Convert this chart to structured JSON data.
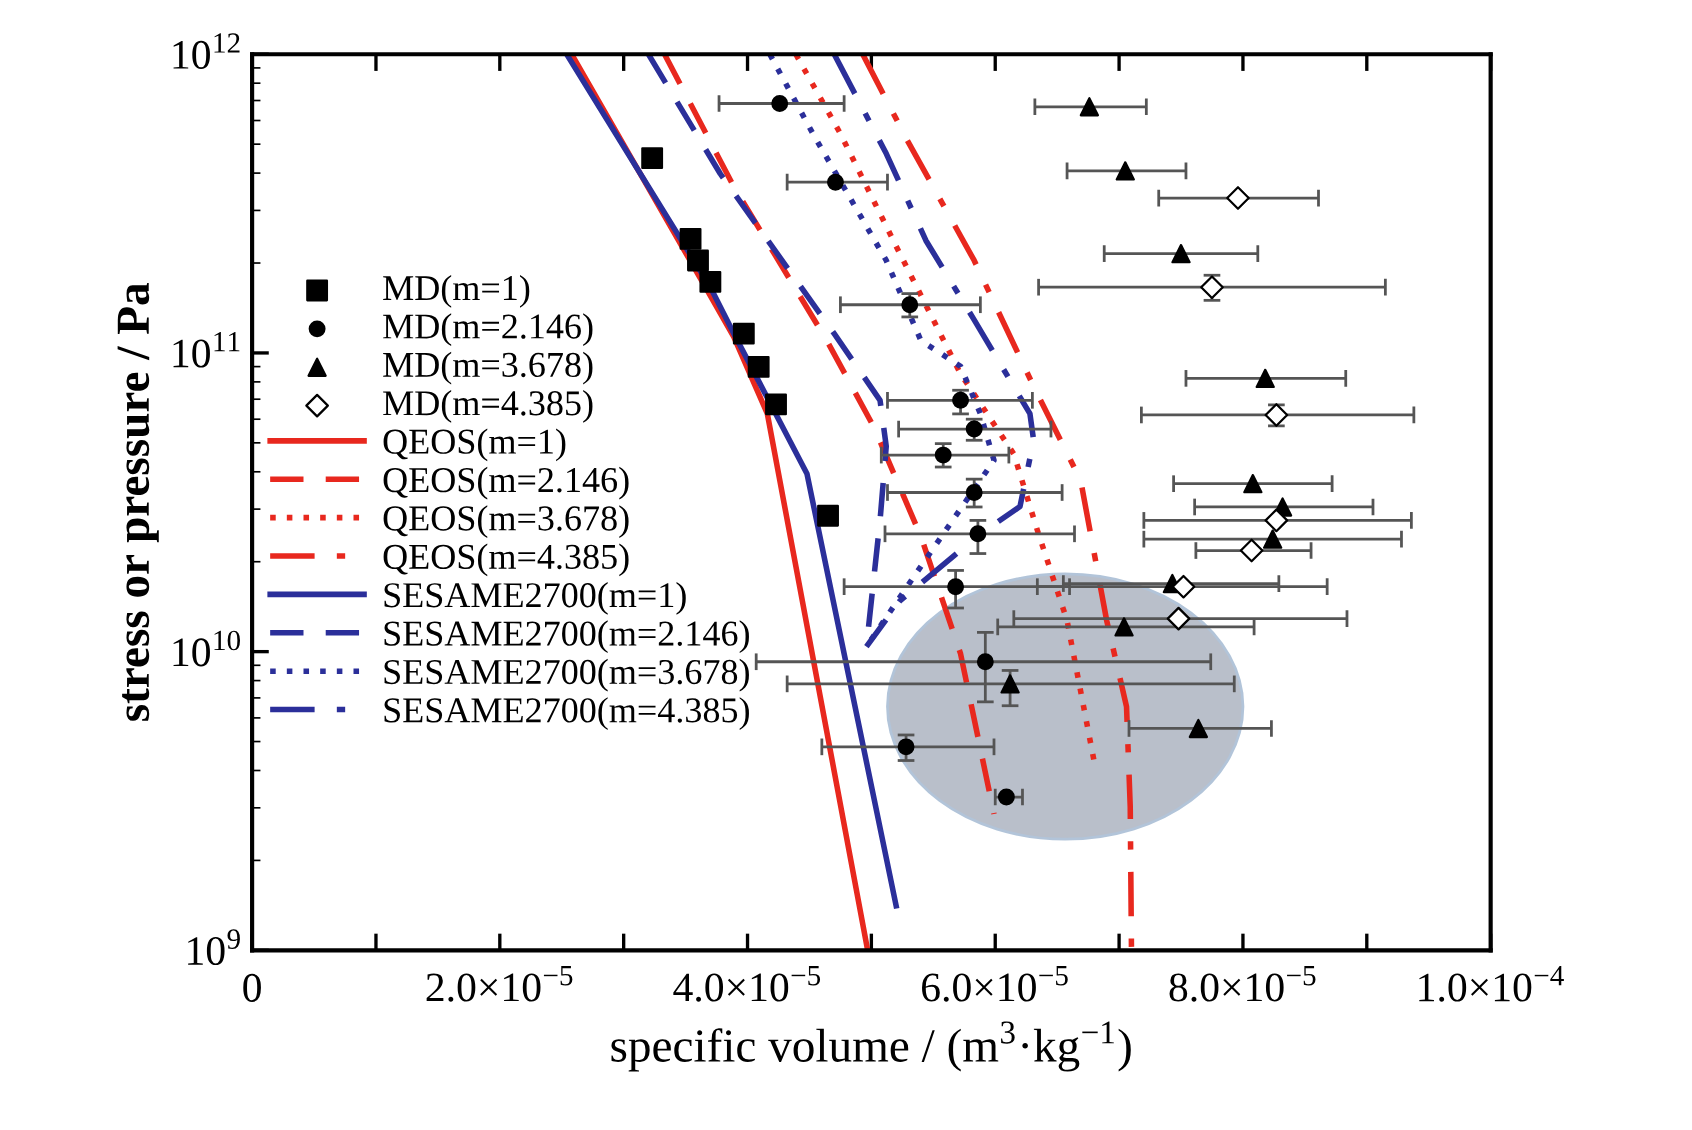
{
  "chart_data": {
    "type": "scatter",
    "xlabel": "specific volume / (m$^{3}$·kg$^{−1}$)",
    "ylabel": "stress or pressure / Pa",
    "log": "y",
    "xlim": [
      0,
      0.0001
    ],
    "xticks": [
      0,
      {
        "value": 1e-05,
        "label": null
      },
      {
        "value": 2e-05,
        "label": "2.0×10$^{−5}$"
      },
      {
        "value": 3e-05,
        "label": null
      },
      {
        "value": 4e-05,
        "label": "4.0×10$^{−5}$"
      },
      {
        "value": 5e-05,
        "label": null
      },
      {
        "value": 6e-05,
        "label": "6.0×10$^{−5}$"
      },
      {
        "value": 7e-05,
        "label": null
      },
      {
        "value": 8e-05,
        "label": "8.0×10$^{−5}$"
      },
      {
        "value": 9e-05,
        "label": null
      },
      {
        "value": 0.0001,
        "label": "1.0×10$^{−4}$"
      }
    ],
    "ylim": [
      1000000000.0,
      1000000000000.0
    ],
    "yticks": [
      {
        "value": 1000000000.0,
        "label": "10$^{9}$"
      },
      {
        "value": 10000000000.0,
        "label": "10$^{10}$"
      },
      {
        "value": 100000000000.0,
        "label": "10$^{11}$"
      },
      {
        "value": 1000000000000.0,
        "label": "10$^{12}$"
      }
    ],
    "grid": false,
    "legend": "left",
    "series": [
      {
        "name": "MD(m=1)",
        "marker": "square",
        "color": "#000000",
        "x": [
          3.23e-05,
          3.54e-05,
          3.6e-05,
          3.7e-05,
          3.97e-05,
          4.09e-05,
          4.23e-05,
          4.65e-05
        ],
        "values": [
          449000000000.0,
          241000000000.0,
          204000000000.0,
          173000000000.0,
          116000000000.0,
          89800000000.0,
          67300000000.0,
          28500000000.0
        ]
      },
      {
        "name": "MD(m=2.146)",
        "marker": "circle",
        "color": "#000000",
        "x": [
          4.26e-05,
          4.71e-05,
          5.31e-05,
          5.72e-05,
          5.83e-05,
          5.58e-05,
          5.83e-05,
          5.86e-05,
          5.68e-05,
          5.92e-05,
          5.28e-05,
          6.09e-05
        ],
        "values": [
          684000000000.0,
          373000000000.0,
          145000000000.0,
          69400000000.0,
          55600000000.0,
          45500000000.0,
          34100000000.0,
          24800000000.0,
          16500000000.0,
          9250000000.0,
          4800000000.0,
          3260000000.0
        ],
        "xerrors": [
          [
            3.77e-05,
            4.78e-05
          ],
          [
            4.32e-05,
            5.13e-05
          ],
          [
            4.75e-05,
            5.88e-05
          ],
          [
            5.13e-05,
            6.3e-05
          ],
          [
            5.22e-05,
            6.45e-05
          ],
          [
            5.08e-05,
            6.11e-05
          ],
          [
            5.13e-05,
            6.54e-05
          ],
          [
            5.11e-05,
            6.64e-05
          ],
          [
            4.78e-05,
            6.6e-05
          ],
          [
            4.07e-05,
            7.74e-05
          ],
          [
            4.6e-05,
            5.99e-05
          ],
          [
            6e-05,
            6.22e-05
          ]
        ],
        "errors": [
          null,
          null,
          [
            132000000000.0,
            158000000000.0
          ],
          [
            62500000000.0,
            75000000000.0
          ],
          [
            51000000000.0,
            60000000000.0
          ],
          [
            41500000000.0,
            49700000000.0
          ],
          [
            30500000000.0,
            37800000000.0
          ],
          [
            21300000000.0,
            27500000000.0
          ],
          [
            14000000000.0,
            18700000000.0
          ],
          [
            6790000000.0,
            11600000000.0
          ],
          [
            4320000000.0,
            5260000000.0
          ],
          null
        ]
      },
      {
        "name": "MD(m=3.678)",
        "marker": "triangle",
        "color": "#000000",
        "x": [
          6.76e-05,
          7.05e-05,
          7.5e-05,
          8.18e-05,
          8.08e-05,
          8.32e-05,
          8.24e-05,
          7.43e-05,
          7.04e-05,
          6.12e-05,
          7.64e-05
        ],
        "values": [
          667000000000.0,
          407000000000.0,
          215000000000.0,
          82200000000.0,
          36500000000.0,
          30500000000.0,
          23800000000.0,
          16900000000.0,
          12100000000.0,
          7800000000.0,
          5530000000.0
        ],
        "xerrors": [
          [
            6.32e-05,
            7.22e-05
          ],
          [
            6.58e-05,
            7.54e-05
          ],
          [
            6.88e-05,
            8.12e-05
          ],
          [
            7.54e-05,
            8.83e-05
          ],
          [
            7.44e-05,
            8.72e-05
          ],
          [
            7.61e-05,
            9.05e-05
          ],
          [
            7.2e-05,
            9.28e-05
          ],
          [
            6.55e-05,
            8.29e-05
          ],
          [
            6.02e-05,
            8.09e-05
          ],
          [
            4.32e-05,
            7.93e-05
          ],
          [
            7.08e-05,
            8.23e-05
          ]
        ],
        "errors": [
          null,
          null,
          null,
          null,
          null,
          null,
          null,
          null,
          null,
          [
            6590000000.0,
            8650000000.0
          ],
          null
        ]
      },
      {
        "name": "MD(m=4.385)",
        "marker": "diamond",
        "color": "#ffffff",
        "x": [
          7.96e-05,
          7.75e-05,
          8.27e-05,
          8.27e-05,
          8.07e-05,
          7.52e-05,
          7.48e-05
        ],
        "values": [
          330000000000.0,
          166000000000.0,
          62000000000.0,
          27500000000.0,
          21800000000.0,
          16500000000.0,
          12900000000.0
        ],
        "xerrors": [
          [
            7.32e-05,
            8.61e-05
          ],
          [
            6.35e-05,
            9.15e-05
          ],
          [
            7.18e-05,
            9.38e-05
          ],
          [
            7.2e-05,
            9.36e-05
          ],
          [
            7.62e-05,
            8.55e-05
          ],
          [
            6.34e-05,
            8.68e-05
          ],
          [
            6.15e-05,
            8.84e-05
          ]
        ],
        "errors": [
          null,
          [
            150000000000.0,
            182000000000.0
          ],
          [
            57000000000.0,
            67000000000.0
          ],
          null,
          null,
          null,
          null
        ]
      },
      {
        "name": "QEOS(m=1)",
        "type": "line",
        "line_style": "solid",
        "color": "#e8281e",
        "x": [
          2.58e-05,
          3.66e-05,
          3.89e-05,
          4.16e-05,
          4.97e-05
        ],
        "values": [
          1000000000000.0,
          166000000000.0,
          113000000000.0,
          62600000000.0,
          1000000000.0
        ]
      },
      {
        "name": "QEOS(m=2.146)",
        "type": "line",
        "line_style": "dashed",
        "color": "#e8281e",
        "x": [
          3.33e-05,
          3.89e-05,
          4.64e-05,
          5.02e-05,
          5.4e-05,
          5.72e-05,
          5.99e-05
        ],
        "values": [
          1000000000000.0,
          360000000000.0,
          110000000000.0,
          56500000000.0,
          24300000000.0,
          9840000000.0,
          2860000000.0
        ]
      },
      {
        "name": "QEOS(m=3.678)",
        "type": "line",
        "line_style": "dotted",
        "color": "#e8281e",
        "x": [
          4.39e-05,
          4.75e-05,
          5.23e-05,
          5.72e-05,
          6.15e-05,
          6.34e-05,
          6.58e-05,
          6.8e-05
        ],
        "values": [
          1000000000000.0,
          542000000000.0,
          215000000000.0,
          85100000000.0,
          45900000000.0,
          25500000000.0,
          12700000000.0,
          4260000000.0
        ]
      },
      {
        "name": "QEOS(m=4.385)",
        "type": "line",
        "line_style": "dashdot",
        "color": "#e8281e",
        "x": [
          4.93e-05,
          5.29e-05,
          5.83e-05,
          6.31e-05,
          6.69e-05,
          6.9e-05,
          7.06e-05,
          7.09e-05,
          7.1e-05
        ],
        "values": [
          1000000000000.0,
          515000000000.0,
          204000000000.0,
          77300000000.0,
          37400000000.0,
          12700000000.0,
          6550000000.0,
          3030000000.0,
          1000000000.0
        ]
      },
      {
        "name": "SESAME2700(m=1)",
        "type": "line",
        "line_style": "solid",
        "color": "#2b2f9a",
        "x": [
          2.54e-05,
          3.7e-05,
          3.89e-05,
          4.48e-05,
          5.2e-05
        ],
        "values": [
          1000000000000.0,
          166000000000.0,
          116000000000.0,
          39400000000.0,
          1410000000.0
        ]
      },
      {
        "name": "SESAME2700(m=2.146)",
        "type": "line",
        "line_style": "dashed",
        "color": "#2b2f9a",
        "x": [
          3.2e-05,
          3.78e-05,
          4.7e-05,
          5.07e-05,
          5.12e-05,
          5.07e-05,
          4.96e-05
        ],
        "values": [
          1000000000000.0,
          398000000000.0,
          116000000000.0,
          69400000000.0,
          48700000000.0,
          27500000000.0,
          10400000000.0
        ]
      },
      {
        "name": "SESAME2700(m=3.678)",
        "type": "line",
        "line_style": "dotted",
        "color": "#2b2f9a",
        "x": [
          4.18e-05,
          4.53e-05,
          5.12e-05,
          5.4e-05,
          5.72e-05,
          5.88e-05,
          5.99e-05,
          5.4e-05,
          4.96e-05
        ],
        "values": [
          1000000000000.0,
          540000000000.0,
          204000000000.0,
          110000000000.0,
          90200000000.0,
          62600000000.0,
          43700000000.0,
          19300000000.0,
          10400000000.0
        ]
      },
      {
        "name": "SESAME2700(m=4.385)",
        "type": "line",
        "line_style": "dashdot",
        "color": "#2b2f9a",
        "x": [
          4.7e-05,
          5.12e-05,
          5.44e-05,
          5.83e-05,
          6.28e-05,
          6.31e-05,
          6.2e-05,
          5.88e-05,
          5.23e-05,
          4.96e-05
        ],
        "values": [
          1000000000000.0,
          465000000000.0,
          238000000000.0,
          129000000000.0,
          62600000000.0,
          51000000000.0,
          30600000000.0,
          24800000000.0,
          14800000000.0,
          10400000000.0
        ]
      }
    ]
  }
}
